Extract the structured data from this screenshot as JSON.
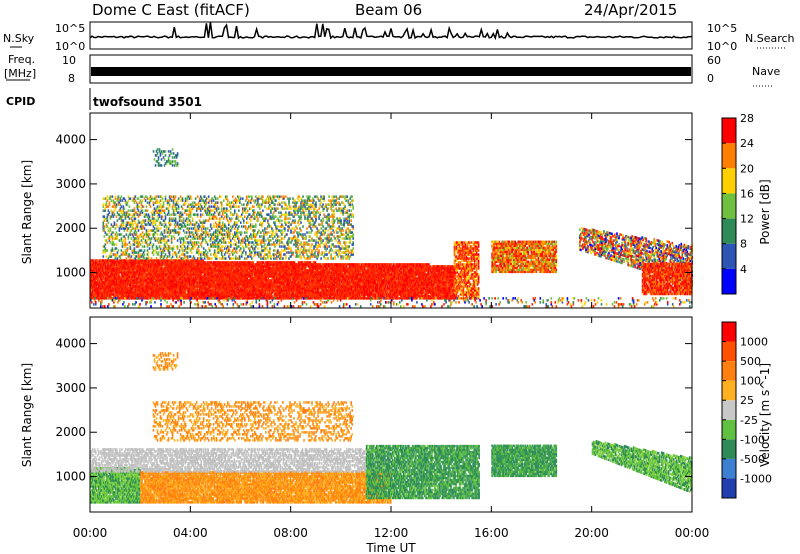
{
  "header": {
    "title": "Dome C East (fitACF)",
    "beam": "Beam 06",
    "date": "24/Apr/2015"
  },
  "sky_panel": {
    "label": "N.Sky",
    "ytick_top": "10^5",
    "ytick_bottom": "10^0",
    "right_label": "N.Search",
    "right_tick_top": "10^5",
    "right_tick_bottom": "10^0"
  },
  "freq_panel": {
    "label_line1": "Freq.",
    "label_line2": "[MHz]",
    "ytick_top": "10",
    "ytick_bottom": "8",
    "right_label": "Nave",
    "right_tick_top": "60",
    "right_tick_bottom": "0"
  },
  "cpid_panel": {
    "label": "CPID",
    "program": "twofsound 3501"
  },
  "chart_data": [
    {
      "type": "heatmap",
      "parameter": "Power",
      "ylabel": "Slant Range [km]",
      "ylim": [
        200,
        4600
      ],
      "yticks": [
        "1000",
        "2000",
        "3000",
        "4000"
      ],
      "colorbar_label": "Power [dB]",
      "colorbar_ticks": [
        "4",
        "8",
        "12",
        "16",
        "20",
        "24",
        "28"
      ],
      "colors": [
        "#0000ff",
        "#2d55b4",
        "#2e8b57",
        "#70c040",
        "#ffd000",
        "#ff8000",
        "#ff0000"
      ]
    },
    {
      "type": "heatmap",
      "parameter": "Velocity",
      "ylabel": "Slant Range [km]",
      "ylim": [
        200,
        4600
      ],
      "yticks": [
        "1000",
        "2000",
        "3000",
        "4000"
      ],
      "colorbar_label": "Velocity [m s^-1]",
      "colorbar_ticks": [
        "1000",
        "500",
        "100",
        "25",
        "-25",
        "-100",
        "-500",
        "-1000"
      ],
      "colors": [
        "#2040b0",
        "#3d7fd0",
        "#2e8b57",
        "#60c040",
        "#c8c8c8",
        "#ffb020",
        "#ff8010",
        "#ff5000",
        "#ff0000"
      ]
    }
  ],
  "time_axis": {
    "xlabel": "Time UT",
    "ticks": [
      "00:00",
      "04:00",
      "08:00",
      "12:00",
      "16:00",
      "20:00",
      "00:00"
    ]
  }
}
